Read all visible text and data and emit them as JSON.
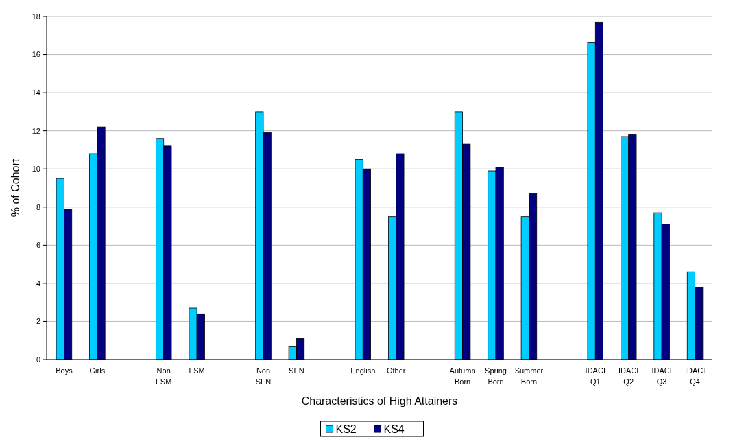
{
  "chart_data": {
    "type": "bar",
    "xlabel": "Characteristics of High Attainers",
    "ylabel": "% of Cohort",
    "categories": [
      "Boys",
      "Girls",
      null,
      "Non FSM",
      "FSM",
      null,
      "Non SEN",
      "SEN",
      null,
      "English",
      "Other",
      null,
      "Autumn Born",
      "Spring Born",
      "Summer Born",
      null,
      "IDACI Q1",
      "IDACI Q2",
      "IDACI Q3",
      "IDACI Q4"
    ],
    "series": [
      {
        "name": "KS2",
        "color": "#00ccff",
        "values": [
          9.5,
          10.8,
          null,
          11.6,
          2.7,
          null,
          13.0,
          0.7,
          null,
          10.5,
          7.5,
          null,
          13.0,
          9.9,
          7.5,
          null,
          16.65,
          11.7,
          7.7,
          4.6
        ]
      },
      {
        "name": "KS4",
        "color": "#000080",
        "values": [
          7.9,
          12.2,
          null,
          11.2,
          2.4,
          null,
          11.9,
          1.1,
          null,
          10.0,
          10.8,
          null,
          11.3,
          10.1,
          8.7,
          null,
          17.7,
          11.8,
          7.1,
          3.8
        ]
      }
    ],
    "ylim": [
      0,
      18
    ],
    "yticks": [
      0,
      2,
      4,
      6,
      8,
      10,
      12,
      14,
      16,
      18
    ],
    "grid": "y",
    "legend": "bottom"
  }
}
